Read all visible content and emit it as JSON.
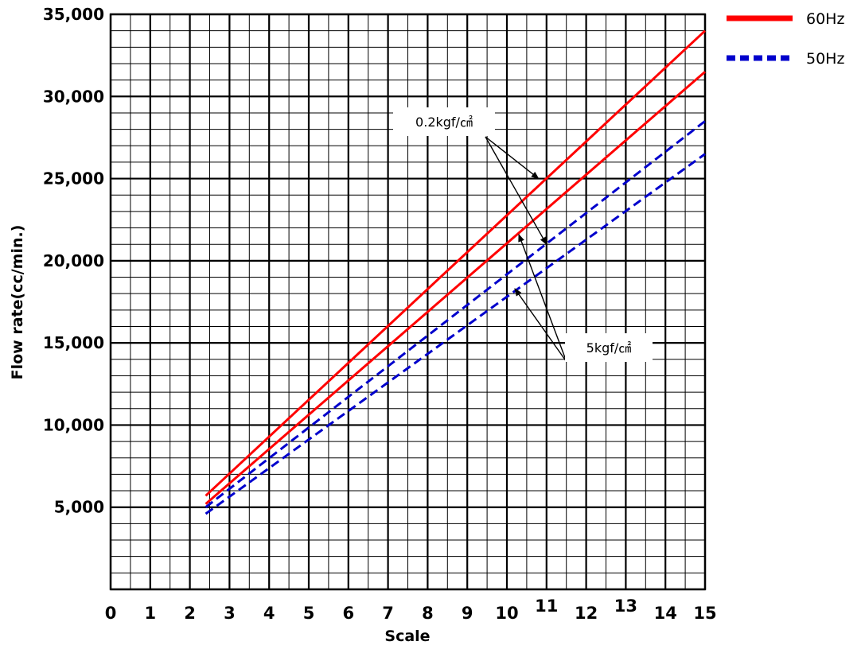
{
  "chart_data": {
    "type": "line",
    "xlabel": "Scale",
    "ylabel": "Flow rate(cc/min.)",
    "xlim": [
      0,
      15
    ],
    "ylim": [
      0,
      35000
    ],
    "x_ticks": [
      "0",
      "1",
      "2",
      "3",
      "4",
      "5",
      "6",
      "7",
      "8",
      "9",
      "10",
      "11",
      "12",
      "13",
      "14",
      "15"
    ],
    "y_ticks": [
      {
        "value": 5000,
        "label": "5,000"
      },
      {
        "value": 10000,
        "label": "10,000"
      },
      {
        "value": 15000,
        "label": "15,000"
      },
      {
        "value": 20000,
        "label": "20,000"
      },
      {
        "value": 25000,
        "label": "25,000"
      },
      {
        "value": 30000,
        "label": "30,000"
      },
      {
        "value": 35000,
        "label": "35,000"
      }
    ],
    "grid": true,
    "legend": {
      "placement": "top-right",
      "entries": [
        {
          "label": "60Hz",
          "color": "#ff0000",
          "style": "solid"
        },
        {
          "label": "50Hz",
          "color": "#0000cc",
          "style": "dashed"
        }
      ]
    },
    "series": [
      {
        "group": "60Hz",
        "pressure": "0.2kgf/㎠",
        "color": "#ff0000",
        "style": "solid",
        "points": [
          [
            2.4,
            5700
          ],
          [
            15,
            34000
          ]
        ]
      },
      {
        "group": "60Hz",
        "pressure": "5kgf/㎠",
        "color": "#ff0000",
        "style": "solid",
        "points": [
          [
            2.4,
            5200
          ],
          [
            15,
            31500
          ]
        ]
      },
      {
        "group": "50Hz",
        "pressure": "0.2kgf/㎠",
        "color": "#0000cc",
        "style": "dashed",
        "points": [
          [
            2.4,
            5000
          ],
          [
            15,
            28500
          ]
        ]
      },
      {
        "group": "50Hz",
        "pressure": "5kgf/㎠",
        "color": "#0000cc",
        "style": "dashed",
        "points": [
          [
            2.4,
            4600
          ],
          [
            15,
            26500
          ]
        ]
      }
    ],
    "annotations": [
      {
        "label": "0.2kgf/㎠",
        "targets": [
          [
            10.8,
            25000
          ],
          [
            11.0,
            21000
          ]
        ]
      },
      {
        "label": "5kgf/㎠",
        "targets": [
          [
            10.3,
            21600
          ],
          [
            10.2,
            18300
          ]
        ]
      }
    ]
  }
}
